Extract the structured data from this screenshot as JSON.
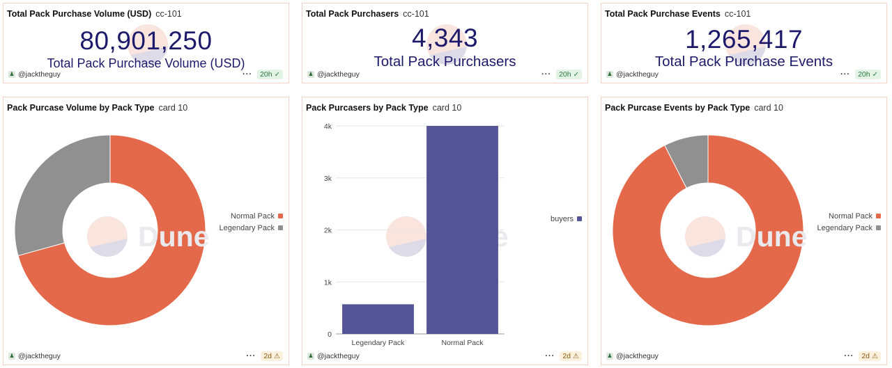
{
  "colors": {
    "accent_text": "#1d1a6b",
    "normal_pack": "#e4694a",
    "legendary_pack": "#909090",
    "buyers": "#555497",
    "card_border": "#f6d3c6"
  },
  "watermark": {
    "text": "Dune"
  },
  "counters": [
    {
      "title": "Total Pack Purchase Volume (USD)",
      "subtitle": "cc-101",
      "value": "80,901,250",
      "label": "Total Pack Purchase Volume (USD)",
      "user": "@jacktheguy",
      "more_icon": "more-dots-icon",
      "badge": "20h",
      "badge_icon": "check-circle-icon"
    },
    {
      "title": "Total Pack Purchasers",
      "subtitle": "cc-101",
      "value": "4,343",
      "label": "Total Pack Purchasers",
      "user": "@jacktheguy",
      "more_icon": "more-dots-icon",
      "badge": "20h",
      "badge_icon": "check-circle-icon"
    },
    {
      "title": "Total Pack Purchase Events",
      "subtitle": "cc-101",
      "value": "1,265,417",
      "label": "Total Pack Purchase Events",
      "user": "@jacktheguy",
      "more_icon": "more-dots-icon",
      "badge": "20h",
      "badge_icon": "check-circle-icon"
    }
  ],
  "charts": [
    {
      "title": "Pack Purcase Volume by Pack Type",
      "subtitle": "card 10",
      "user": "@jacktheguy",
      "badge": "2d",
      "badge_icon": "warning-triangle-icon"
    },
    {
      "title": "Pack Purcasers by Pack Type",
      "subtitle": "card 10",
      "user": "@jacktheguy",
      "badge": "2d",
      "badge_icon": "warning-triangle-icon"
    },
    {
      "title": "Pack Purcase Events by Pack Type",
      "subtitle": "card 10",
      "user": "@jacktheguy",
      "badge": "2d",
      "badge_icon": "warning-triangle-icon"
    }
  ],
  "chart_data": [
    {
      "type": "pie",
      "donut": true,
      "labels": [
        "Normal Pack",
        "Legendary Pack"
      ],
      "values": [
        70.7,
        29.3
      ],
      "colors": [
        "#e4694a",
        "#909090"
      ],
      "legend_position": "right"
    },
    {
      "type": "bar",
      "categories": [
        "Legendary Pack",
        "Normal Pack"
      ],
      "series": [
        {
          "name": "buyers",
          "values": [
            570,
            4000
          ],
          "color": "#555497"
        }
      ],
      "y_ticks": [
        "0",
        "1k",
        "2k",
        "3k",
        "4k"
      ],
      "ylim": [
        0,
        4000
      ],
      "grid": true,
      "legend_position": "right"
    },
    {
      "type": "pie",
      "donut": true,
      "labels": [
        "Normal Pack",
        "Legendary Pack"
      ],
      "values": [
        92.5,
        7.5
      ],
      "colors": [
        "#e4694a",
        "#909090"
      ],
      "legend_position": "right"
    }
  ]
}
